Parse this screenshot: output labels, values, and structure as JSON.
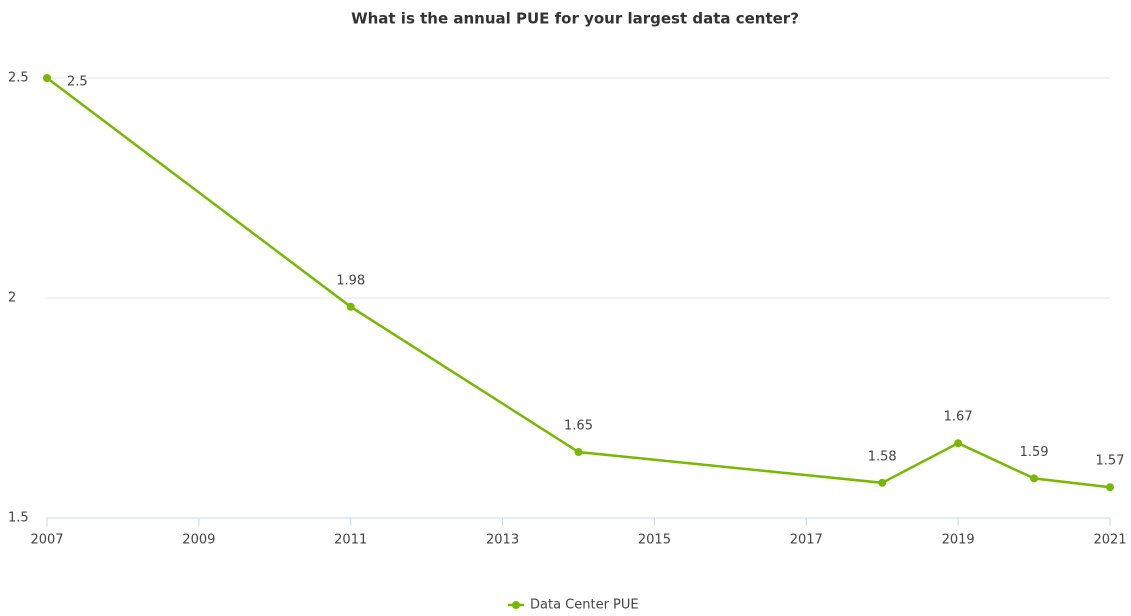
{
  "chart_data": {
    "type": "line",
    "title": "What is the annual PUE for your largest data center?",
    "x": [
      2007,
      2011,
      2014,
      2018,
      2019,
      2020,
      2021
    ],
    "series": [
      {
        "name": "Data Center PUE",
        "color": "#76b900",
        "values": [
          2.5,
          1.98,
          1.65,
          1.58,
          1.67,
          1.59,
          1.57
        ]
      }
    ],
    "xlim": [
      2007,
      2021
    ],
    "xticks": [
      2007,
      2009,
      2011,
      2013,
      2015,
      2017,
      2019,
      2021
    ],
    "ylim": [
      1.5,
      2.5
    ],
    "yticks": [
      1.5,
      2,
      2.5
    ],
    "grid": true,
    "legend": "bottom"
  }
}
